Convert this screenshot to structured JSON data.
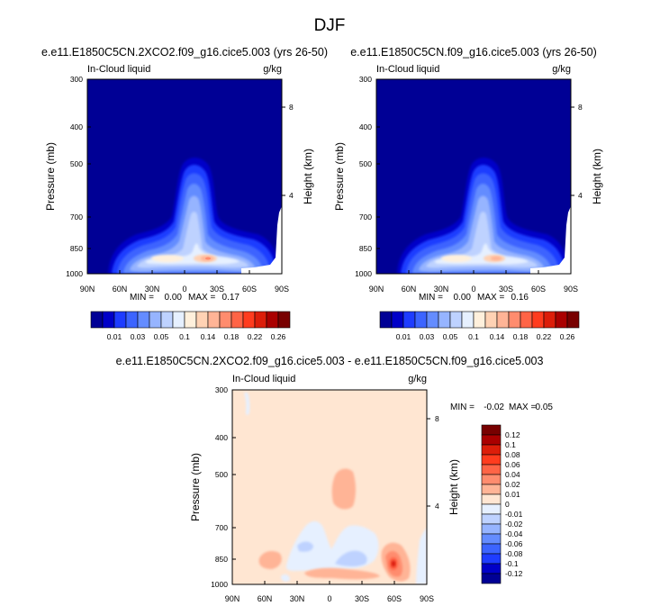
{
  "figure": {
    "title": "DJF"
  },
  "chart_data": [
    {
      "type": "heatmap",
      "title": "e.e11.E1850C5CN.2XCO2.f09_g16.cice5.003 (yrs 26-50)",
      "left_label": "In-Cloud liquid",
      "right_label": "g/kg",
      "ylabel": "Pressure (mb)",
      "ylabel_right": "Height (km)",
      "x_ticks": [
        "90N",
        "60N",
        "30N",
        "0",
        "30S",
        "60S",
        "90S"
      ],
      "y_ticks": [
        "300",
        "400",
        "500",
        "700",
        "850",
        "1000"
      ],
      "y_right_ticks": [
        "8",
        "4"
      ],
      "y_scale": "log-pressure",
      "min_label": "MIN =",
      "min_value": "0.00",
      "max_label": "MAX =",
      "max_value": "0.17",
      "colorbar_labels": [
        "0.01",
        "0.03",
        "0.05",
        "0.1",
        "0.14",
        "0.18",
        "0.22",
        "0.26"
      ],
      "colors": [
        "#000095",
        "#0000c8",
        "#1e3cff",
        "#3c64ff",
        "#648cff",
        "#96b4ff",
        "#bed2ff",
        "#e6f0ff",
        "#fff0dc",
        "#ffd2b4",
        "#ffb496",
        "#ff8c6e",
        "#ff6446",
        "#ff3c1e",
        "#dc1e0a",
        "#aa0000",
        "#780000"
      ]
    },
    {
      "type": "heatmap",
      "title": "e.e11.E1850C5CN.f09_g16.cice5.003 (yrs 26-50)",
      "left_label": "In-Cloud liquid",
      "right_label": "g/kg",
      "ylabel": "Pressure (mb)",
      "ylabel_right": "Height (km)",
      "x_ticks": [
        "90N",
        "60N",
        "30N",
        "0",
        "30S",
        "60S",
        "90S"
      ],
      "y_ticks": [
        "300",
        "400",
        "500",
        "700",
        "850",
        "1000"
      ],
      "y_right_ticks": [
        "8",
        "4"
      ],
      "y_scale": "log-pressure",
      "min_label": "MIN =",
      "min_value": "0.00",
      "max_label": "MAX =",
      "max_value": "0.16",
      "colorbar_labels": [
        "0.01",
        "0.03",
        "0.05",
        "0.1",
        "0.14",
        "0.18",
        "0.22",
        "0.26"
      ]
    },
    {
      "type": "heatmap",
      "title": "e.e11.E1850C5CN.2XCO2.f09_g16.cice5.003 - e.e11.E1850C5CN.f09_g16.cice5.003",
      "left_label": "In-Cloud liquid",
      "right_label": "g/kg",
      "ylabel": "Pressure (mb)",
      "ylabel_right": "Height (km)",
      "x_ticks": [
        "90N",
        "60N",
        "30N",
        "0",
        "30S",
        "60S",
        "90S"
      ],
      "y_ticks": [
        "300",
        "400",
        "500",
        "700",
        "850",
        "1000"
      ],
      "y_right_ticks": [
        "8",
        "4"
      ],
      "y_scale": "log-pressure",
      "min_label": "MIN =",
      "min_value": "-0.02",
      "max_label": "MAX =",
      "max_value": "0.05",
      "colorbar_labels": [
        "0.12",
        "0.1",
        "0.08",
        "0.06",
        "0.04",
        "0.02",
        "0.01",
        "0",
        "-0.01",
        "-0.02",
        "-0.04",
        "-0.06",
        "-0.08",
        "-0.1",
        "-0.12"
      ],
      "colors": [
        "#780000",
        "#aa0000",
        "#dc1e0a",
        "#ff3c1e",
        "#ff6446",
        "#ff8c6e",
        "#ffb496",
        "#ffe6d2",
        "#e6f0ff",
        "#bed2ff",
        "#96b4ff",
        "#648cff",
        "#3c64ff",
        "#1e3cff",
        "#0000c8",
        "#000095"
      ]
    }
  ]
}
